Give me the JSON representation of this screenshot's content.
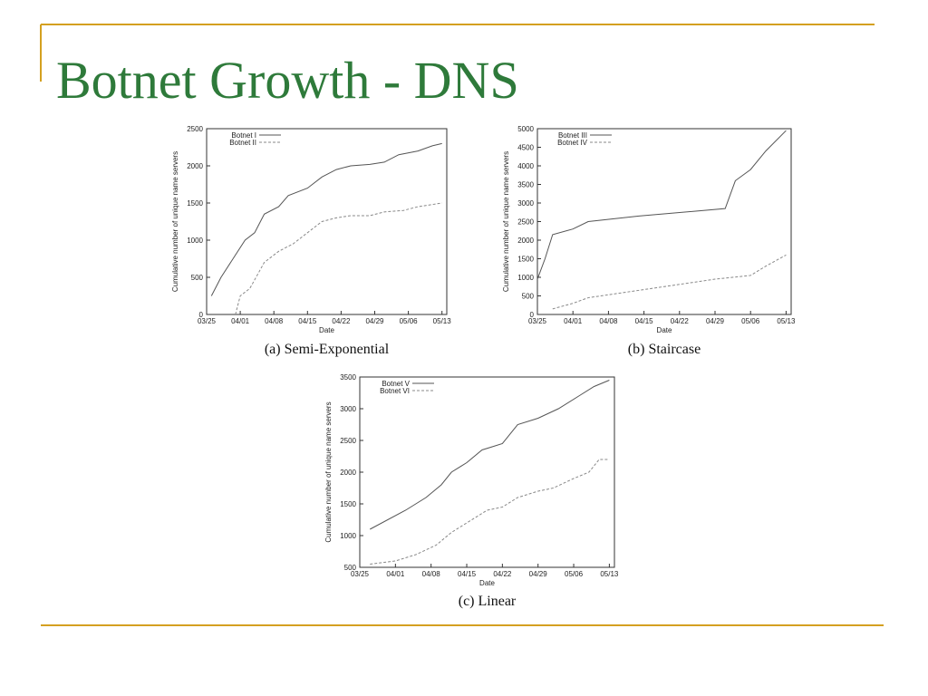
{
  "title": "Botnet Growth - DNS",
  "chart_data": [
    {
      "type": "line",
      "title": "(a) Semi-Exponential",
      "xlabel": "Date",
      "ylabel": "Cumulative number of unique name servers",
      "xlim": [
        0,
        50
      ],
      "ylim": [
        0,
        2500
      ],
      "xticks": [
        {
          "value": 0,
          "label": "03/25"
        },
        {
          "value": 7,
          "label": "04/01"
        },
        {
          "value": 14,
          "label": "04/08"
        },
        {
          "value": 21,
          "label": "04/15"
        },
        {
          "value": 28,
          "label": "04/22"
        },
        {
          "value": 35,
          "label": "04/29"
        },
        {
          "value": 42,
          "label": "05/06"
        },
        {
          "value": 49,
          "label": "05/13"
        }
      ],
      "yticks": [
        0,
        500,
        1000,
        1500,
        2000,
        2500
      ],
      "series": [
        {
          "name": "Botnet I",
          "color": "#555555",
          "dash": "solid",
          "x": [
            1,
            3,
            6,
            8,
            10,
            12,
            15,
            17,
            21,
            24,
            27,
            30,
            34,
            37,
            40,
            44,
            47,
            49
          ],
          "values": [
            250,
            500,
            800,
            1000,
            1100,
            1350,
            1450,
            1600,
            1700,
            1850,
            1950,
            2000,
            2020,
            2050,
            2150,
            2200,
            2270,
            2300
          ]
        },
        {
          "name": "Botnet II",
          "color": "#888888",
          "dash": "dashed",
          "x": [
            6,
            7,
            9,
            12,
            15,
            18,
            21,
            24,
            27,
            30,
            34,
            37,
            41,
            44,
            49
          ],
          "values": [
            0,
            250,
            350,
            700,
            850,
            950,
            1100,
            1250,
            1300,
            1330,
            1330,
            1380,
            1400,
            1450,
            1500
          ]
        }
      ]
    },
    {
      "type": "line",
      "title": "(b) Staircase",
      "xlabel": "Date",
      "ylabel": "Cumulative number of unique name servers",
      "xlim": [
        0,
        50
      ],
      "ylim": [
        0,
        5000
      ],
      "xticks": [
        {
          "value": 0,
          "label": "03/25"
        },
        {
          "value": 7,
          "label": "04/01"
        },
        {
          "value": 14,
          "label": "04/08"
        },
        {
          "value": 21,
          "label": "04/15"
        },
        {
          "value": 28,
          "label": "04/22"
        },
        {
          "value": 35,
          "label": "04/29"
        },
        {
          "value": 42,
          "label": "05/06"
        },
        {
          "value": 49,
          "label": "05/13"
        }
      ],
      "yticks": [
        0,
        500,
        1000,
        1500,
        2000,
        2500,
        3000,
        3500,
        4000,
        4500,
        5000
      ],
      "series": [
        {
          "name": "Botnet III",
          "color": "#555555",
          "dash": "solid",
          "x": [
            0,
            1.5,
            3,
            7,
            10,
            20,
            37,
            39,
            42,
            45,
            49
          ],
          "values": [
            950,
            1500,
            2150,
            2300,
            2500,
            2650,
            2850,
            3600,
            3900,
            4400,
            4950
          ]
        },
        {
          "name": "Botnet IV",
          "color": "#888888",
          "dash": "dashed",
          "x": [
            3,
            7,
            10,
            15,
            25,
            35,
            42,
            45,
            49
          ],
          "values": [
            150,
            300,
            450,
            550,
            750,
            950,
            1050,
            1300,
            1600
          ]
        }
      ]
    },
    {
      "type": "line",
      "title": "(c) Linear",
      "xlabel": "Date",
      "ylabel": "Cumulative number of unique name servers",
      "xlim": [
        0,
        50
      ],
      "ylim": [
        500,
        3500
      ],
      "xticks": [
        {
          "value": 0,
          "label": "03/25"
        },
        {
          "value": 7,
          "label": "04/01"
        },
        {
          "value": 14,
          "label": "04/08"
        },
        {
          "value": 21,
          "label": "04/15"
        },
        {
          "value": 28,
          "label": "04/22"
        },
        {
          "value": 35,
          "label": "04/29"
        },
        {
          "value": 42,
          "label": "05/06"
        },
        {
          "value": 49,
          "label": "05/13"
        }
      ],
      "yticks": [
        500,
        1000,
        1500,
        2000,
        2500,
        3000,
        3500
      ],
      "series": [
        {
          "name": "Botnet V",
          "color": "#555555",
          "dash": "solid",
          "x": [
            2,
            9,
            13,
            16,
            18,
            21,
            24,
            26,
            28,
            31,
            35,
            39,
            43,
            46,
            49
          ],
          "values": [
            1100,
            1400,
            1600,
            1800,
            2000,
            2150,
            2350,
            2400,
            2450,
            2750,
            2850,
            3000,
            3200,
            3350,
            3450
          ]
        },
        {
          "name": "Botnet VI",
          "color": "#888888",
          "dash": "dashed",
          "x": [
            2,
            7,
            11,
            15,
            18,
            21,
            25,
            28,
            31,
            35,
            38,
            42,
            45,
            47,
            49
          ],
          "values": [
            550,
            600,
            700,
            850,
            1050,
            1200,
            1400,
            1450,
            1600,
            1700,
            1750,
            1900,
            2000,
            2200,
            2200
          ]
        }
      ]
    }
  ]
}
